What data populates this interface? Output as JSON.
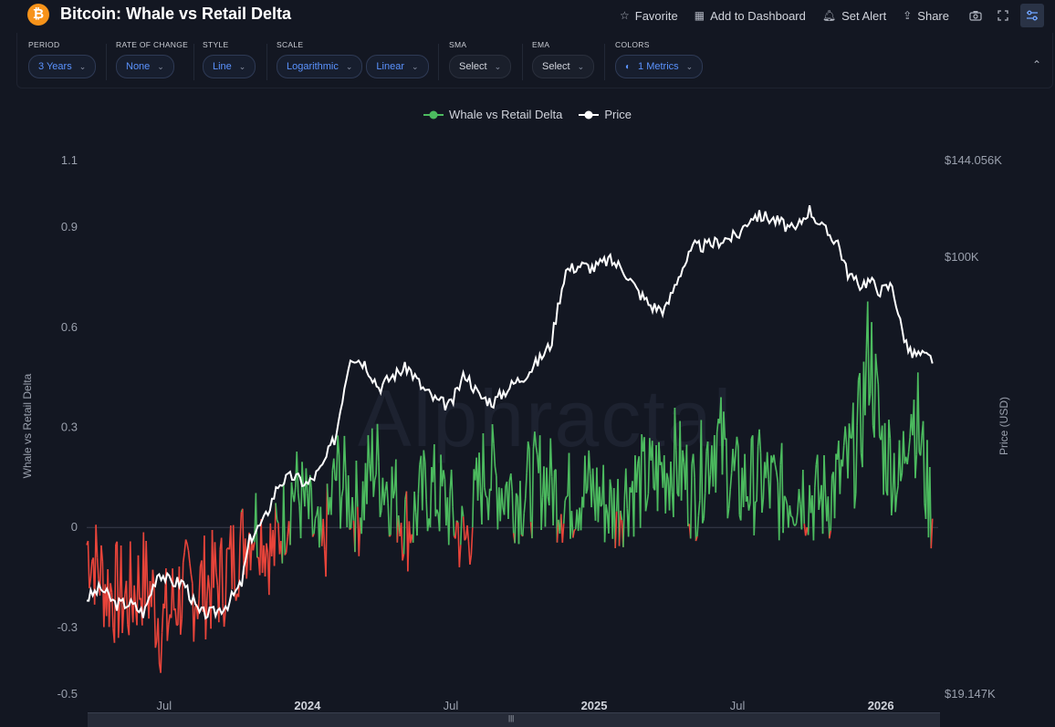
{
  "header": {
    "coin_symbol": "₿",
    "title": "Bitcoin: Whale vs Retail Delta",
    "actions": {
      "favorite": "Favorite",
      "add_dashboard": "Add to Dashboard",
      "set_alert": "Set Alert",
      "share": "Share"
    }
  },
  "controls": {
    "period": {
      "label": "PERIOD",
      "value": "3 Years"
    },
    "rate_of_change": {
      "label": "RATE OF CHANGE",
      "value": "None"
    },
    "style": {
      "label": "STYLE",
      "value": "Line"
    },
    "scale": {
      "label": "SCALE",
      "value1": "Logarithmic",
      "value2": "Linear"
    },
    "sma": {
      "label": "SMA",
      "value": "Select"
    },
    "ema": {
      "label": "EMA",
      "value": "Select"
    },
    "colors": {
      "label": "COLORS",
      "value": "1 Metrics"
    }
  },
  "watermark": "Alphractal",
  "colors": {
    "positive": "#4cbb5f",
    "negative": "#e8443a",
    "price": "#ffffff",
    "accent": "#5b93ff",
    "background": "#131722"
  },
  "chart_data": {
    "type": "line",
    "legend": [
      "Whale vs Retail Delta",
      "Price"
    ],
    "y_left": {
      "label": "Whale vs Retail Delta",
      "range": [
        -0.5,
        1.1
      ],
      "tick_labels": [
        {
          "value": 1.1,
          "text": "1.1"
        },
        {
          "value": 0.9,
          "text": "0.9"
        },
        {
          "value": 0.6,
          "text": "0.6"
        },
        {
          "value": 0.3,
          "text": "0.3"
        },
        {
          "value": 0,
          "text": "0"
        },
        {
          "value": -0.3,
          "text": "-0.3"
        },
        {
          "value": -0.5,
          "text": "-0.5"
        }
      ]
    },
    "y_right": {
      "label": "Price (USD)",
      "scale": "log",
      "range": [
        19147,
        144056
      ],
      "tick_labels": [
        {
          "value": 144056,
          "text": "$144.056K"
        },
        {
          "value": 100000,
          "text": "$100K"
        },
        {
          "value": 19147,
          "text": "$19.147K"
        }
      ]
    },
    "x_axis": {
      "range": [
        2023.23,
        2026.2
      ],
      "tick_labels": [
        {
          "t": 2023.5,
          "text": "Jul",
          "bold": false
        },
        {
          "t": 2024.0,
          "text": "2024",
          "bold": true
        },
        {
          "t": 2024.5,
          "text": "Jul",
          "bold": false
        },
        {
          "t": 2025.0,
          "text": "2025",
          "bold": true
        },
        {
          "t": 2025.5,
          "text": "Jul",
          "bold": false
        },
        {
          "t": 2026.0,
          "text": "2026",
          "bold": true
        }
      ]
    },
    "series": [
      {
        "name": "Whale vs Retail Delta",
        "t": [
          2023.23,
          2023.3,
          2023.37,
          2023.43,
          2023.5,
          2023.55,
          2023.62,
          2023.7,
          2023.77,
          2023.82,
          2023.88,
          2023.95,
          2024.0,
          2024.05,
          2024.1,
          2024.18,
          2024.23,
          2024.3,
          2024.35,
          2024.42,
          2024.48,
          2024.55,
          2024.62,
          2024.68,
          2024.75,
          2024.82,
          2024.9,
          2024.96,
          2025.0,
          2025.07,
          2025.12,
          2025.2,
          2025.28,
          2025.35,
          2025.42,
          2025.5,
          2025.58,
          2025.65,
          2025.72,
          2025.78,
          2025.82,
          2025.86,
          2025.9,
          2025.93,
          2025.96,
          2026.0,
          2026.04,
          2026.07,
          2026.1,
          2026.13,
          2026.16,
          2026.18
        ],
        "values": [
          -0.05,
          -0.18,
          -0.22,
          -0.15,
          -0.3,
          -0.2,
          -0.18,
          -0.16,
          -0.05,
          0.02,
          -0.08,
          0.12,
          0.05,
          -0.1,
          0.16,
          0.05,
          0.2,
          0.1,
          0.0,
          0.12,
          0.08,
          -0.05,
          0.18,
          0.12,
          0.1,
          0.15,
          0.08,
          0.12,
          0.1,
          0.05,
          0.12,
          0.14,
          0.2,
          0.1,
          0.28,
          0.12,
          0.14,
          0.1,
          0.12,
          0.08,
          0.1,
          0.15,
          0.2,
          0.3,
          0.55,
          0.25,
          0.2,
          0.12,
          0.4,
          0.3,
          0.12,
          0.05
        ]
      },
      {
        "name": "Price",
        "t": [
          2023.23,
          2023.28,
          2023.33,
          2023.38,
          2023.43,
          2023.48,
          2023.52,
          2023.57,
          2023.62,
          2023.67,
          2023.72,
          2023.77,
          2023.8,
          2023.85,
          2023.9,
          2023.95,
          2024.0,
          2024.05,
          2024.1,
          2024.15,
          2024.2,
          2024.25,
          2024.3,
          2024.35,
          2024.4,
          2024.45,
          2024.5,
          2024.55,
          2024.6,
          2024.65,
          2024.7,
          2024.75,
          2024.8,
          2024.85,
          2024.9,
          2024.95,
          2025.0,
          2025.05,
          2025.1,
          2025.15,
          2025.2,
          2025.25,
          2025.3,
          2025.35,
          2025.4,
          2025.45,
          2025.5,
          2025.55,
          2025.6,
          2025.65,
          2025.7,
          2025.75,
          2025.8,
          2025.85,
          2025.88,
          2025.92,
          2025.96,
          2026.0,
          2026.04,
          2026.07,
          2026.1,
          2026.14,
          2026.18
        ],
        "values": [
          27500,
          28600,
          26900,
          27000,
          26000,
          30500,
          29300,
          29200,
          26000,
          26000,
          26900,
          29000,
          34500,
          37000,
          42500,
          43700,
          42300,
          45000,
          51000,
          69000,
          67000,
          61000,
          64000,
          66000,
          61000,
          58000,
          57000,
          64500,
          59000,
          57800,
          61000,
          63500,
          67000,
          72000,
          95000,
          97000,
          96000,
          99000,
          96000,
          88000,
          83000,
          82000,
          94500,
          104000,
          104500,
          107000,
          108300,
          117000,
          116500,
          114000,
          110000,
          120000,
          111000,
          106000,
          95000,
          90000,
          91500,
          88000,
          90000,
          77000,
          69500,
          69000,
          68000
        ]
      }
    ]
  }
}
